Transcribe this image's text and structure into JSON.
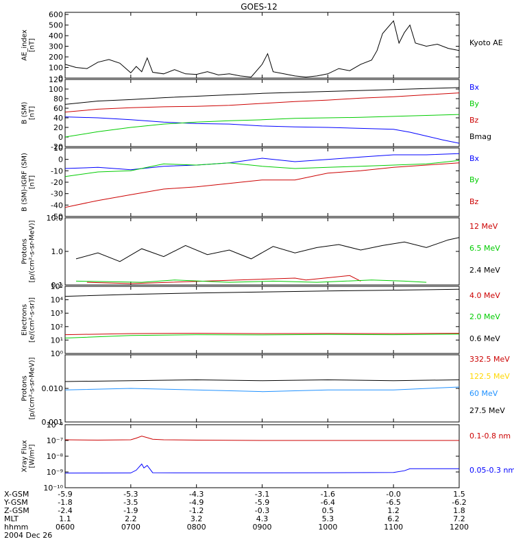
{
  "title": "GOES-12",
  "chart_data": [
    {
      "type": "line",
      "panel": "ae_index",
      "ylabel": [
        "AE_index",
        "[nT]"
      ],
      "ylim": [
        0,
        620
      ],
      "yticks": [
        0,
        100,
        200,
        300,
        400,
        500,
        600
      ],
      "ytick_labels": [
        "0",
        "100",
        "200",
        "300",
        "400",
        "500",
        "600"
      ],
      "series": [
        {
          "name": "Kyoto AE",
          "color": "#000000",
          "x": [
            "06:00",
            "06:10",
            "06:20",
            "06:30",
            "06:40",
            "06:50",
            "07:00",
            "07:05",
            "07:10",
            "07:15",
            "07:20",
            "07:30",
            "07:40",
            "07:50",
            "08:00",
            "08:10",
            "08:20",
            "08:30",
            "08:40",
            "08:50",
            "09:00",
            "09:05",
            "09:10",
            "09:20",
            "09:30",
            "09:40",
            "09:50",
            "10:00",
            "10:10",
            "10:20",
            "10:30",
            "10:40",
            "10:45",
            "10:50",
            "11:00",
            "11:05",
            "11:10",
            "11:15",
            "11:20",
            "11:30",
            "11:40",
            "11:50",
            "12:00"
          ],
          "values": [
            130,
            100,
            90,
            150,
            175,
            140,
            50,
            110,
            60,
            190,
            55,
            40,
            80,
            40,
            35,
            60,
            30,
            40,
            20,
            10,
            130,
            230,
            60,
            40,
            20,
            10,
            20,
            40,
            90,
            70,
            130,
            170,
            260,
            420,
            540,
            330,
            430,
            500,
            330,
            300,
            320,
            280,
            260
          ]
        }
      ]
    },
    {
      "type": "line",
      "panel": "b_sm",
      "ylabel": [
        "B (SM)",
        "[nT]"
      ],
      "ylim": [
        -20,
        120
      ],
      "yticks": [
        -20,
        0,
        20,
        40,
        60,
        80,
        100,
        120
      ],
      "ytick_labels": [
        "-20",
        "0",
        "20",
        "40",
        "60",
        "80",
        "100",
        "120"
      ],
      "series": [
        {
          "name": "Bx",
          "color": "#0000ff",
          "x": [
            "06:00",
            "06:30",
            "07:00",
            "07:30",
            "08:00",
            "08:30",
            "09:00",
            "09:30",
            "10:00",
            "10:30",
            "11:00",
            "11:15",
            "11:30",
            "11:45",
            "12:00"
          ],
          "values": [
            42,
            40,
            36,
            31,
            28,
            27,
            23,
            21,
            20,
            18,
            16,
            10,
            2,
            -6,
            -13
          ]
        },
        {
          "name": "By",
          "color": "#00cc00",
          "x": [
            "06:00",
            "06:30",
            "07:00",
            "07:30",
            "08:00",
            "08:30",
            "09:00",
            "09:30",
            "10:00",
            "10:30",
            "11:00",
            "11:30",
            "12:00"
          ],
          "values": [
            0,
            11,
            20,
            27,
            31,
            34,
            36,
            39,
            40,
            41,
            43,
            45,
            47
          ]
        },
        {
          "name": "Bz",
          "color": "#cc0000",
          "x": [
            "06:00",
            "06:30",
            "07:00",
            "07:30",
            "08:00",
            "08:30",
            "09:00",
            "09:30",
            "10:00",
            "10:30",
            "11:00",
            "11:30",
            "12:00"
          ],
          "values": [
            52,
            58,
            61,
            63,
            64,
            66,
            70,
            74,
            77,
            81,
            84,
            88,
            92
          ]
        },
        {
          "name": "Bmag",
          "color": "#000000",
          "x": [
            "06:00",
            "06:30",
            "07:00",
            "07:30",
            "08:00",
            "08:30",
            "09:00",
            "09:30",
            "10:00",
            "10:30",
            "11:00",
            "11:30",
            "12:00"
          ],
          "values": [
            68,
            75,
            78,
            82,
            85,
            88,
            91,
            93,
            95,
            97,
            99,
            101,
            103
          ]
        }
      ]
    },
    {
      "type": "line",
      "panel": "b_minus_igrf",
      "ylabel": [
        "B (SM)-IGRF (SM)",
        "[nT]"
      ],
      "ylim": [
        -50,
        10
      ],
      "yticks": [
        -50,
        -40,
        -30,
        -20,
        -10,
        0,
        10
      ],
      "ytick_labels": [
        "-50",
        "-40",
        "-30",
        "-20",
        "-10",
        "0",
        "10"
      ],
      "series": [
        {
          "name": "Bx",
          "color": "#0000ff",
          "x": [
            "06:00",
            "06:30",
            "07:00",
            "07:30",
            "08:00",
            "08:30",
            "09:00",
            "09:30",
            "10:00",
            "10:30",
            "11:00",
            "11:30",
            "12:00"
          ],
          "values": [
            -8,
            -7,
            -9,
            -6,
            -5,
            -3,
            1,
            -2,
            0,
            2,
            4,
            4,
            5
          ]
        },
        {
          "name": "By",
          "color": "#00cc00",
          "x": [
            "06:00",
            "06:30",
            "07:00",
            "07:30",
            "08:00",
            "08:30",
            "09:00",
            "09:30",
            "10:00",
            "10:30",
            "11:00",
            "11:30",
            "12:00"
          ],
          "values": [
            -15,
            -11,
            -10,
            -4,
            -5,
            -3,
            -6,
            -8,
            -7,
            -6,
            -5,
            -4,
            -1
          ]
        },
        {
          "name": "Bz",
          "color": "#cc0000",
          "x": [
            "06:00",
            "06:30",
            "07:00",
            "07:30",
            "08:00",
            "08:30",
            "09:00",
            "09:30",
            "10:00",
            "10:30",
            "11:00",
            "11:30",
            "12:00"
          ],
          "values": [
            -42,
            -36,
            -31,
            -26,
            -24,
            -21,
            -18,
            -18,
            -12,
            -10,
            -7,
            -5,
            -3
          ]
        }
      ]
    },
    {
      "type": "line",
      "panel": "protons_low",
      "ylabel": [
        "Protons",
        "[p/(cm²-s-sr-MeV)]"
      ],
      "yscale": "log",
      "ylim": [
        0.1,
        10.0
      ],
      "yticks": [
        0.1,
        1.0,
        10.0
      ],
      "ytick_labels": [
        "0.1",
        "1.0",
        "10.0"
      ],
      "series": [
        {
          "name": "12 MeV",
          "color": "#cc0000",
          "x": [
            "06:20",
            "07:00",
            "09:30",
            "09:40",
            "10:20",
            "10:30"
          ],
          "values": [
            0.12,
            0.11,
            0.16,
            0.14,
            0.19,
            0.13
          ]
        },
        {
          "name": "6.5 MeV",
          "color": "#00cc00",
          "x": [
            "06:10",
            "07:10",
            "07:40",
            "08:30",
            "09:10",
            "09:50",
            "10:40",
            "11:10",
            "11:30"
          ],
          "values": [
            0.13,
            0.12,
            0.14,
            0.12,
            0.13,
            0.12,
            0.14,
            0.13,
            0.12
          ]
        },
        {
          "name": "2.4 MeV",
          "color": "#000000",
          "x": [
            "06:10",
            "06:30",
            "06:50",
            "07:10",
            "07:30",
            "07:50",
            "08:10",
            "08:30",
            "08:50",
            "09:10",
            "09:30",
            "09:50",
            "10:10",
            "10:30",
            "10:50",
            "11:10",
            "11:30",
            "11:50",
            "12:00"
          ],
          "values": [
            0.6,
            0.9,
            0.5,
            1.2,
            0.7,
            1.5,
            0.8,
            1.1,
            0.6,
            1.4,
            0.9,
            1.3,
            1.6,
            1.1,
            1.5,
            1.9,
            1.3,
            2.2,
            2.6
          ]
        }
      ]
    },
    {
      "type": "line",
      "panel": "electrons",
      "ylabel": [
        "Electrons",
        "[e/(cm²-s-sr)]"
      ],
      "yscale": "log",
      "ylim": [
        1,
        100000
      ],
      "yticks": [
        1,
        10,
        100,
        1000,
        10000,
        100000
      ],
      "ytick_labels": [
        "10⁰",
        "10¹",
        "10²",
        "10³",
        "10⁴",
        "10⁵"
      ],
      "series": [
        {
          "name": "4.0 MeV",
          "color": "#cc0000",
          "x": [
            "06:00",
            "07:00",
            "08:00",
            "09:00",
            "10:00",
            "11:00",
            "12:00"
          ],
          "values": [
            25,
            30,
            32,
            30,
            31,
            30,
            32
          ]
        },
        {
          "name": "2.0 MeV",
          "color": "#00cc00",
          "x": [
            "06:00",
            "07:00",
            "08:00",
            "09:00",
            "10:00",
            "11:00",
            "12:00"
          ],
          "values": [
            14,
            22,
            25,
            24,
            26,
            25,
            27
          ]
        },
        {
          "name": "0.6 MeV",
          "color": "#000000",
          "x": [
            "06:00",
            "07:00",
            "08:00",
            "09:00",
            "10:00",
            "11:00",
            "12:00"
          ],
          "values": [
            18000,
            25000,
            32000,
            38000,
            45000,
            52000,
            60000
          ]
        }
      ]
    },
    {
      "type": "line",
      "panel": "protons_high",
      "ylabel": [
        "Protons",
        "[p/(cm²-s-sr-MeV)]"
      ],
      "yscale": "log",
      "ylim": [
        0.001,
        0.1
      ],
      "yticks": [
        0.001,
        0.01
      ],
      "ytick_labels": [
        "0.001",
        "0.010"
      ],
      "series": [
        {
          "name": "332.5 MeV",
          "color": "#cc0000",
          "x": [],
          "values": []
        },
        {
          "name": "122.5 MeV",
          "color": "#ffd700",
          "x": [],
          "values": []
        },
        {
          "name": "60 MeV",
          "color": "#1e90ff",
          "x": [
            "06:00",
            "07:00",
            "08:00",
            "09:00",
            "10:00",
            "11:00",
            "12:00"
          ],
          "values": [
            0.009,
            0.01,
            0.009,
            0.008,
            0.009,
            0.009,
            0.011
          ]
        },
        {
          "name": "27.5 MeV",
          "color": "#000000",
          "x": [
            "06:00",
            "07:00",
            "08:00",
            "09:00",
            "10:00",
            "11:00",
            "12:00"
          ],
          "values": [
            0.016,
            0.017,
            0.018,
            0.017,
            0.018,
            0.017,
            0.018
          ]
        }
      ]
    },
    {
      "type": "line",
      "panel": "xray",
      "ylabel": [
        "Xray Flux",
        "[W/m²]"
      ],
      "yscale": "log",
      "ylim": [
        1e-10,
        1e-06
      ],
      "yticks": [
        1e-10,
        1e-09,
        1e-08,
        1e-07,
        1e-06
      ],
      "ytick_labels": [
        "10⁻¹⁰",
        "10⁻⁹",
        "10⁻⁸",
        "10⁻⁷",
        "10⁻⁶"
      ],
      "series": [
        {
          "name": "0.1-0.8 nm",
          "color": "#cc0000",
          "x": [
            "06:00",
            "06:30",
            "07:00",
            "07:05",
            "07:10",
            "07:15",
            "07:20",
            "07:30",
            "08:00",
            "09:00",
            "10:00",
            "11:00",
            "11:30",
            "12:00"
          ],
          "values": [
            1.1e-07,
            1.05e-07,
            1.1e-07,
            1.4e-07,
            1.9e-07,
            1.5e-07,
            1.2e-07,
            1.1e-07,
            1.05e-07,
            1e-07,
            1e-07,
            1e-07,
            1e-07,
            1e-07
          ]
        },
        {
          "name": "0.05-0.3 nm",
          "color": "#0000ff",
          "x": [
            "06:00",
            "06:30",
            "07:00",
            "07:05",
            "07:10",
            "07:12",
            "07:15",
            "07:20",
            "08:00",
            "09:00",
            "10:00",
            "11:00",
            "11:10",
            "11:15",
            "11:30",
            "12:00"
          ],
          "values": [
            8.5e-10,
            8.6e-10,
            8.7e-10,
            1.3e-09,
            3.2e-09,
            1.8e-09,
            2.6e-09,
            9e-10,
            8.8e-10,
            8.9e-10,
            9e-10,
            9.2e-10,
            1.2e-09,
            1.6e-09,
            1.6e-09,
            1.6e-09
          ]
        }
      ]
    }
  ],
  "footer": {
    "row_labels": [
      "X-GSM",
      "Y-GSM",
      "Z-GSM",
      "MLT",
      "hhmm",
      "2004 Dec 26"
    ],
    "columns": [
      {
        "x": "-5.9",
        "y": "-1.8",
        "z": "-2.4",
        "mlt": "1.1",
        "hhmm": "0600"
      },
      {
        "x": "-5.3",
        "y": "-3.5",
        "z": "-1.9",
        "mlt": "2.2",
        "hhmm": "0700"
      },
      {
        "x": "-4.3",
        "y": "-4.9",
        "z": "-1.2",
        "mlt": "3.2",
        "hhmm": "0800"
      },
      {
        "x": "-3.1",
        "y": "-5.9",
        "z": "-0.3",
        "mlt": "4.3",
        "hhmm": "0900"
      },
      {
        "x": "-1.6",
        "y": "-6.4",
        "z": "0.5",
        "mlt": "5.3",
        "hhmm": "1000"
      },
      {
        "x": "-0.0",
        "y": "-6.5",
        "z": "1.2",
        "mlt": "6.2",
        "hhmm": "1100"
      },
      {
        "x": "1.5",
        "y": "-6.2",
        "z": "1.8",
        "mlt": "7.2",
        "hhmm": "1200"
      }
    ]
  }
}
